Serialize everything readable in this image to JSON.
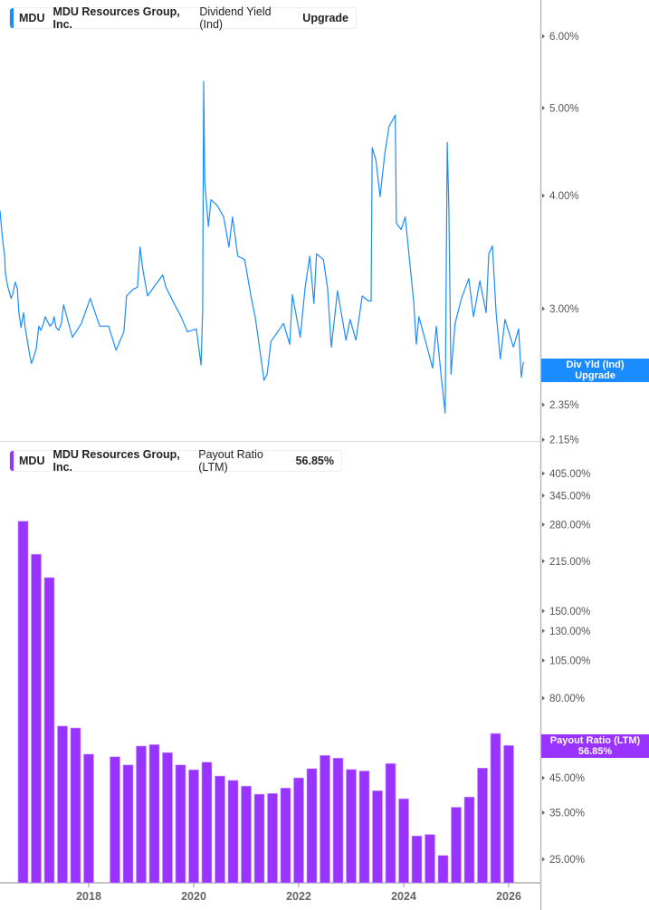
{
  "top_panel": {
    "ticker": "MDU",
    "company": "MDU Resources Group, Inc.",
    "metric": "Dividend Yield (Ind)",
    "value_label": "Upgrade",
    "tag_line1": "Div Yld (Ind)",
    "tag_line2": "Upgrade",
    "color": "#1a8cff"
  },
  "bottom_panel": {
    "ticker": "MDU",
    "company": "MDU Resources Group, Inc.",
    "metric": "Payout Ratio (LTM)",
    "value_label": "56.85%",
    "tag_line1": "Payout Ratio (LTM)",
    "tag_line2": "56.85%",
    "color": "#9933ff"
  },
  "chart_data": [
    {
      "type": "line",
      "series_name": "Dividend Yield (Ind)",
      "y_scale": "log",
      "ylim": [
        2.15,
        6.3
      ],
      "xlim": [
        2016.31,
        2026.6
      ],
      "grid": false,
      "y_ticks": [
        {
          "value": 6.0,
          "label": "6.00%"
        },
        {
          "value": 5.0,
          "label": "5.00%"
        },
        {
          "value": 4.0,
          "label": "4.00%"
        },
        {
          "value": 3.0,
          "label": "3.00%"
        },
        {
          "value": 2.55,
          "label": "2.55%"
        },
        {
          "value": 2.35,
          "label": "2.35%"
        },
        {
          "value": 2.15,
          "label": "2.15%"
        }
      ],
      "x": [
        2016.31,
        2016.36,
        2016.4,
        2016.41,
        2016.45,
        2016.52,
        2016.55,
        2016.6,
        2016.64,
        2016.67,
        2016.71,
        2016.76,
        2016.79,
        2016.83,
        2016.88,
        2016.91,
        2016.95,
        2017.0,
        2017.05,
        2017.09,
        2017.14,
        2017.17,
        2017.26,
        2017.31,
        2017.34,
        2017.38,
        2017.43,
        2017.48,
        2017.52,
        2017.69,
        2017.86,
        2018.03,
        2018.21,
        2018.38,
        2018.52,
        2018.67,
        2018.72,
        2018.84,
        2018.93,
        2018.98,
        2019.03,
        2019.12,
        2019.24,
        2019.41,
        2019.47,
        2019.64,
        2019.76,
        2019.88,
        2020.05,
        2020.14,
        2020.17,
        2020.19,
        2020.21,
        2020.28,
        2020.33,
        2020.45,
        2020.57,
        2020.67,
        2020.74,
        2020.84,
        2020.97,
        2021.09,
        2021.17,
        2021.26,
        2021.34,
        2021.4,
        2021.47,
        2021.71,
        2021.83,
        2021.88,
        2022.03,
        2022.12,
        2022.21,
        2022.29,
        2022.34,
        2022.47,
        2022.55,
        2022.62,
        2022.74,
        2022.9,
        2022.98,
        2023.09,
        2023.21,
        2023.33,
        2023.38,
        2023.4,
        2023.47,
        2023.55,
        2023.64,
        2023.72,
        2023.84,
        2023.86,
        2023.95,
        2024.03,
        2024.12,
        2024.19,
        2024.24,
        2024.29,
        2024.41,
        2024.55,
        2024.62,
        2024.71,
        2024.79,
        2024.83,
        2024.86,
        2024.9,
        2024.98,
        2025.1,
        2025.24,
        2025.33,
        2025.45,
        2025.57,
        2025.62,
        2025.69,
        2025.76,
        2025.84,
        2025.93,
        2026.09,
        2026.19,
        2026.24,
        2026.28
      ],
      "y": [
        3.85,
        3.57,
        3.43,
        3.3,
        3.19,
        3.08,
        3.11,
        3.21,
        3.16,
        2.97,
        2.86,
        2.97,
        2.86,
        2.77,
        2.66,
        2.61,
        2.65,
        2.71,
        2.87,
        2.84,
        2.89,
        2.94,
        2.87,
        2.89,
        2.94,
        2.86,
        2.84,
        2.89,
        3.03,
        2.79,
        2.89,
        3.08,
        2.87,
        2.87,
        2.7,
        2.83,
        3.1,
        3.15,
        3.17,
        3.51,
        3.32,
        3.1,
        3.17,
        3.27,
        3.17,
        3.03,
        2.94,
        2.83,
        2.85,
        2.6,
        2.99,
        5.35,
        4.15,
        3.7,
        3.96,
        3.9,
        3.79,
        3.51,
        3.79,
        3.43,
        3.4,
        3.1,
        2.94,
        2.7,
        2.5,
        2.54,
        2.76,
        2.89,
        2.74,
        3.11,
        2.79,
        3.16,
        3.43,
        3.04,
        3.45,
        3.4,
        3.16,
        2.72,
        3.14,
        2.77,
        2.92,
        2.77,
        3.1,
        3.06,
        3.06,
        4.52,
        4.38,
        3.99,
        4.45,
        4.77,
        4.91,
        3.73,
        3.67,
        3.79,
        3.35,
        3.06,
        2.74,
        2.94,
        2.77,
        2.58,
        2.87,
        2.54,
        2.3,
        4.58,
        3.87,
        2.54,
        2.89,
        3.08,
        3.24,
        2.94,
        3.22,
        2.97,
        3.45,
        3.52,
        2.97,
        2.64,
        2.92,
        2.72,
        2.85,
        2.52,
        2.62
      ]
    },
    {
      "type": "bar",
      "series_name": "Payout Ratio (LTM)",
      "y_scale": "log",
      "ylim": [
        22,
        430
      ],
      "grid": false,
      "y_ticks": [
        {
          "value": 405,
          "label": "405.00%"
        },
        {
          "value": 345,
          "label": "345.00%"
        },
        {
          "value": 280,
          "label": "280.00%"
        },
        {
          "value": 215,
          "label": "215.00%"
        },
        {
          "value": 150,
          "label": "150.00%"
        },
        {
          "value": 130,
          "label": "130.00%"
        },
        {
          "value": 105,
          "label": "105.00%"
        },
        {
          "value": 80,
          "label": "80.00%"
        },
        {
          "value": 55,
          "label": "55.00%"
        },
        {
          "value": 45,
          "label": "45.00%"
        },
        {
          "value": 35,
          "label": "35.00%"
        },
        {
          "value": 25,
          "label": "25.00%"
        }
      ],
      "x_ticks": [
        "2018",
        "2020",
        "2022",
        "2024",
        "2026"
      ],
      "categories": [
        "2016-09",
        "2016-12",
        "2017-03",
        "2017-06",
        "2017-09",
        "2017-12",
        "2018-03",
        "2018-06",
        "2018-09",
        "2018-12",
        "2019-03",
        "2019-06",
        "2019-09",
        "2019-12",
        "2020-03",
        "2020-06",
        "2020-09",
        "2020-12",
        "2021-03",
        "2021-06",
        "2021-09",
        "2021-12",
        "2022-03",
        "2022-06",
        "2022-09",
        "2022-12",
        "2023-03",
        "2023-06",
        "2023-09",
        "2023-12",
        "2024-03",
        "2024-06",
        "2024-09",
        "2024-12",
        "2025-03",
        "2025-06",
        "2025-09",
        "2025-12"
      ],
      "values": [
        287,
        226,
        191,
        65.4,
        64.5,
        53.4,
        null,
        52.4,
        49.4,
        56.6,
        57.2,
        54.0,
        49.4,
        47.7,
        50.4,
        45.6,
        44.2,
        42.4,
        40.0,
        40.2,
        41.8,
        45.0,
        48.1,
        52.9,
        51.9,
        47.8,
        47.3,
        41.0,
        49.9,
        38.7,
        29.6,
        29.9,
        25.7,
        36.4,
        39.2,
        48.3,
        62.0,
        56.85
      ]
    }
  ]
}
